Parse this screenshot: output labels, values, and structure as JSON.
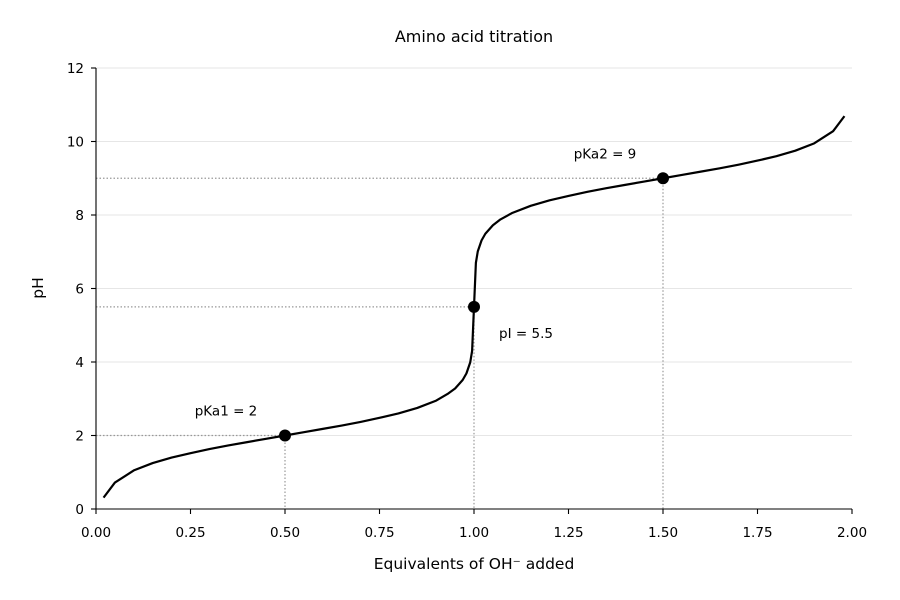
{
  "chart_data": {
    "type": "line",
    "title": "Amino acid titration",
    "xlabel": "Equivalents of OH⁻ added",
    "ylabel": "pH",
    "xlim": [
      0,
      2
    ],
    "ylim": [
      0,
      12
    ],
    "xticks": [
      "0.00",
      "0.25",
      "0.50",
      "0.75",
      "1.00",
      "1.25",
      "1.50",
      "1.75",
      "2.00"
    ],
    "yticks": [
      "0",
      "2",
      "4",
      "6",
      "8",
      "10",
      "12"
    ],
    "grid": "horizontal",
    "series": [
      {
        "x": [
          0.02,
          0.05,
          0.1,
          0.15,
          0.2,
          0.25,
          0.3,
          0.35,
          0.4,
          0.45,
          0.5,
          0.55,
          0.6,
          0.65,
          0.7,
          0.75,
          0.8,
          0.85,
          0.9,
          0.93,
          0.95,
          0.97,
          0.98,
          0.99,
          0.995,
          1.0,
          1.005,
          1.01,
          1.02,
          1.03,
          1.05,
          1.07,
          1.1,
          1.15,
          1.2,
          1.25,
          1.3,
          1.35,
          1.4,
          1.45,
          1.5,
          1.55,
          1.6,
          1.65,
          1.7,
          1.75,
          1.8,
          1.85,
          1.9,
          1.95,
          1.98
        ],
        "y": [
          0.31,
          0.72,
          1.05,
          1.25,
          1.4,
          1.52,
          1.63,
          1.73,
          1.82,
          1.91,
          2.0,
          2.09,
          2.18,
          2.27,
          2.37,
          2.48,
          2.6,
          2.75,
          2.95,
          3.13,
          3.28,
          3.51,
          3.69,
          3.99,
          4.3,
          5.5,
          6.7,
          7.01,
          7.31,
          7.49,
          7.72,
          7.88,
          8.05,
          8.25,
          8.4,
          8.52,
          8.63,
          8.73,
          8.82,
          8.91,
          9.0,
          9.09,
          9.18,
          9.27,
          9.37,
          9.48,
          9.6,
          9.75,
          9.95,
          10.28,
          10.69
        ]
      }
    ],
    "points": [
      {
        "x": 0.5,
        "y": 2.0
      },
      {
        "x": 1.0,
        "y": 5.5
      },
      {
        "x": 1.5,
        "y": 9.0
      }
    ],
    "annotations": [
      {
        "text": "pKa1 = 2",
        "x": 0.5,
        "y": 2.0
      },
      {
        "text": "pI = 5.5",
        "x": 1.0,
        "y": 5.5
      },
      {
        "text": "pKa2 = 9",
        "x": 1.5,
        "y": 9.0
      }
    ],
    "colors": {
      "line": "#000000",
      "marker": "#000000",
      "guide": "#999999",
      "grid": "#e6e6e6"
    }
  }
}
